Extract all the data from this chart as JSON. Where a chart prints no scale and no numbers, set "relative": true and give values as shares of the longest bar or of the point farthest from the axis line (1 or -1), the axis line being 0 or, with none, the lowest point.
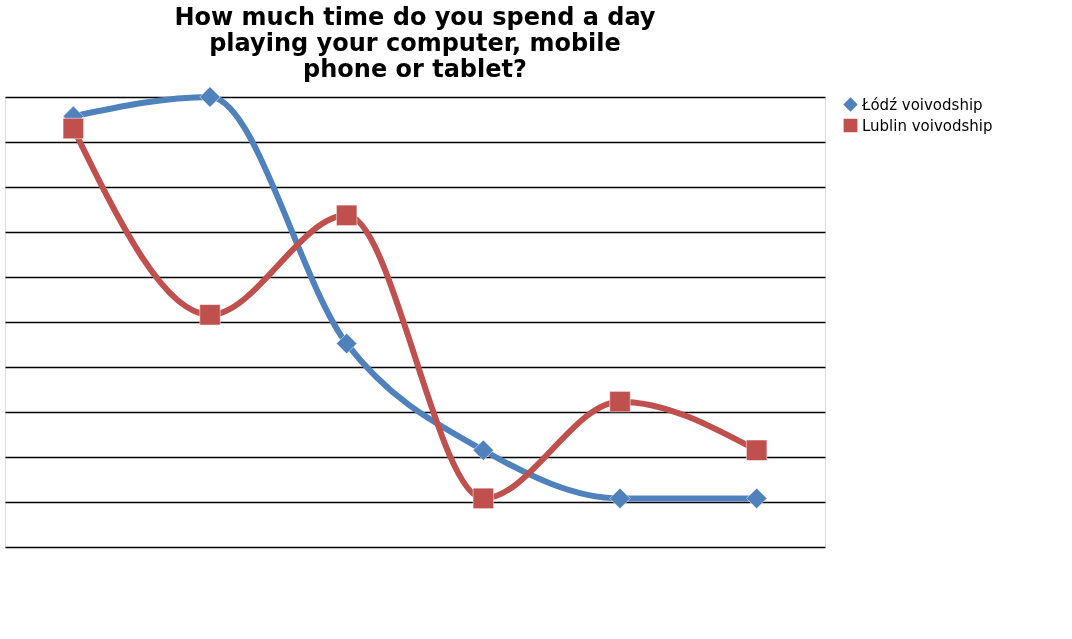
{
  "chart_data": {
    "type": "line",
    "title": "How much time do you spend a day playing your computer, mobile phone or tablet?",
    "categories": [
      null,
      null,
      null,
      null,
      null,
      null
    ],
    "relative": true,
    "grid": "y",
    "legend": "right",
    "tick_labels": false,
    "line_style": "solid",
    "series": [
      {
        "name": "Łódź voivodship",
        "color": "#4f81bd",
        "marker": "diamond",
        "values": [
          0.957,
          1,
          0.452,
          0.215,
          0.108,
          0.108
        ]
      },
      {
        "name": "Lublin voivodship",
        "color": "#c0504d",
        "marker": "square",
        "values": [
          0.93,
          0.516,
          0.737,
          0.108,
          0.323,
          0.215
        ]
      }
    ]
  }
}
